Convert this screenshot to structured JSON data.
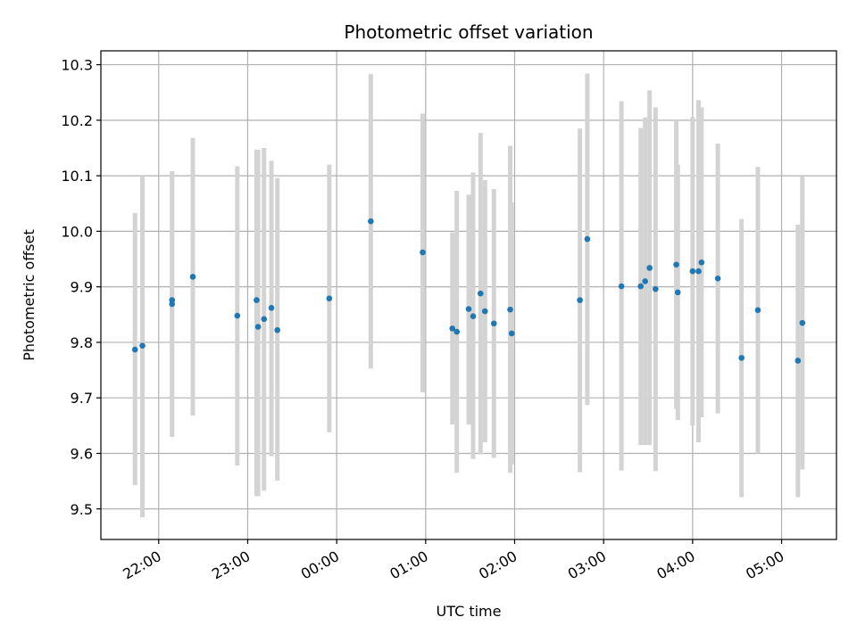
{
  "chart_data": {
    "type": "scatter",
    "title": "Photometric offset variation",
    "xlabel": "UTC time",
    "ylabel": "Photometric offset",
    "xlim": [
      "21:21",
      "05:37"
    ],
    "ylim": [
      9.445,
      10.325
    ],
    "x_ticks": [
      "22:00",
      "23:00",
      "00:00",
      "01:00",
      "02:00",
      "03:00",
      "04:00",
      "05:00"
    ],
    "y_ticks": [
      9.5,
      9.6,
      9.7,
      9.8,
      9.9,
      10.0,
      10.1,
      10.2,
      10.3
    ],
    "y_tick_labels": [
      "9.5",
      "9.6",
      "9.7",
      "9.8",
      "9.9",
      "10.0",
      "10.1",
      "10.2",
      "10.3"
    ],
    "grid": true,
    "colors": {
      "point": "#1f77b4",
      "errorbar": "#d3d3d3",
      "grid": "#b0b0b0"
    },
    "series": [
      {
        "points": [
          {
            "t": "21:44",
            "y": 9.787,
            "lo": 9.543,
            "hi": 10.033
          },
          {
            "t": "21:49",
            "y": 9.794,
            "lo": 9.485,
            "hi": 10.1
          },
          {
            "t": "22:09",
            "y": 9.869,
            "lo": 9.63,
            "hi": 10.108
          },
          {
            "t": "22:09",
            "y": 9.876,
            "lo": 9.63,
            "hi": 10.108
          },
          {
            "t": "22:23",
            "y": 9.918,
            "lo": 9.668,
            "hi": 10.168
          },
          {
            "t": "22:53",
            "y": 9.848,
            "lo": 9.578,
            "hi": 10.117
          },
          {
            "t": "23:06",
            "y": 9.876,
            "lo": 9.523,
            "hi": 10.147
          },
          {
            "t": "23:07",
            "y": 9.828,
            "lo": 9.523,
            "hi": 10.147
          },
          {
            "t": "23:11",
            "y": 9.842,
            "lo": 9.533,
            "hi": 10.15
          },
          {
            "t": "23:16",
            "y": 9.862,
            "lo": 9.595,
            "hi": 10.127
          },
          {
            "t": "23:20",
            "y": 9.822,
            "lo": 9.551,
            "hi": 10.096
          },
          {
            "t": "23:55",
            "y": 9.879,
            "lo": 9.638,
            "hi": 10.12
          },
          {
            "t": "00:23",
            "y": 10.018,
            "lo": 9.753,
            "hi": 10.283
          },
          {
            "t": "00:58",
            "y": 9.962,
            "lo": 9.71,
            "hi": 10.212
          },
          {
            "t": "01:18",
            "y": 9.825,
            "lo": 9.652,
            "hi": 9.998
          },
          {
            "t": "01:21",
            "y": 9.819,
            "lo": 9.565,
            "hi": 10.073
          },
          {
            "t": "01:29",
            "y": 9.86,
            "lo": 9.652,
            "hi": 10.066
          },
          {
            "t": "01:32",
            "y": 9.847,
            "lo": 9.59,
            "hi": 10.106
          },
          {
            "t": "01:37",
            "y": 9.888,
            "lo": 9.598,
            "hi": 10.177
          },
          {
            "t": "01:40",
            "y": 9.856,
            "lo": 9.62,
            "hi": 10.092
          },
          {
            "t": "01:46",
            "y": 9.834,
            "lo": 9.592,
            "hi": 10.076
          },
          {
            "t": "01:57",
            "y": 9.859,
            "lo": 9.565,
            "hi": 10.154
          },
          {
            "t": "01:58",
            "y": 9.816,
            "lo": 9.58,
            "hi": 10.052
          },
          {
            "t": "02:44",
            "y": 9.876,
            "lo": 9.566,
            "hi": 10.185
          },
          {
            "t": "02:49",
            "y": 9.986,
            "lo": 9.687,
            "hi": 10.284
          },
          {
            "t": "03:12",
            "y": 9.901,
            "lo": 9.569,
            "hi": 10.234
          },
          {
            "t": "03:25",
            "y": 9.901,
            "lo": 9.615,
            "hi": 10.186
          },
          {
            "t": "03:28",
            "y": 9.91,
            "lo": 9.615,
            "hi": 10.205
          },
          {
            "t": "03:31",
            "y": 9.934,
            "lo": 9.615,
            "hi": 10.254
          },
          {
            "t": "03:35",
            "y": 9.896,
            "lo": 9.568,
            "hi": 10.223
          },
          {
            "t": "03:49",
            "y": 9.94,
            "lo": 9.68,
            "hi": 10.2
          },
          {
            "t": "03:50",
            "y": 9.89,
            "lo": 9.66,
            "hi": 10.12
          },
          {
            "t": "04:00",
            "y": 9.928,
            "lo": 9.65,
            "hi": 10.206
          },
          {
            "t": "04:04",
            "y": 9.928,
            "lo": 9.62,
            "hi": 10.236
          },
          {
            "t": "04:06",
            "y": 9.944,
            "lo": 9.665,
            "hi": 10.223
          },
          {
            "t": "04:17",
            "y": 9.915,
            "lo": 9.672,
            "hi": 10.158
          },
          {
            "t": "04:33",
            "y": 9.772,
            "lo": 9.521,
            "hi": 10.022
          },
          {
            "t": "04:44",
            "y": 9.858,
            "lo": 9.6,
            "hi": 10.116
          },
          {
            "t": "05:11",
            "y": 9.767,
            "lo": 9.521,
            "hi": 10.012
          },
          {
            "t": "05:14",
            "y": 9.835,
            "lo": 9.571,
            "hi": 10.1
          }
        ]
      }
    ]
  }
}
